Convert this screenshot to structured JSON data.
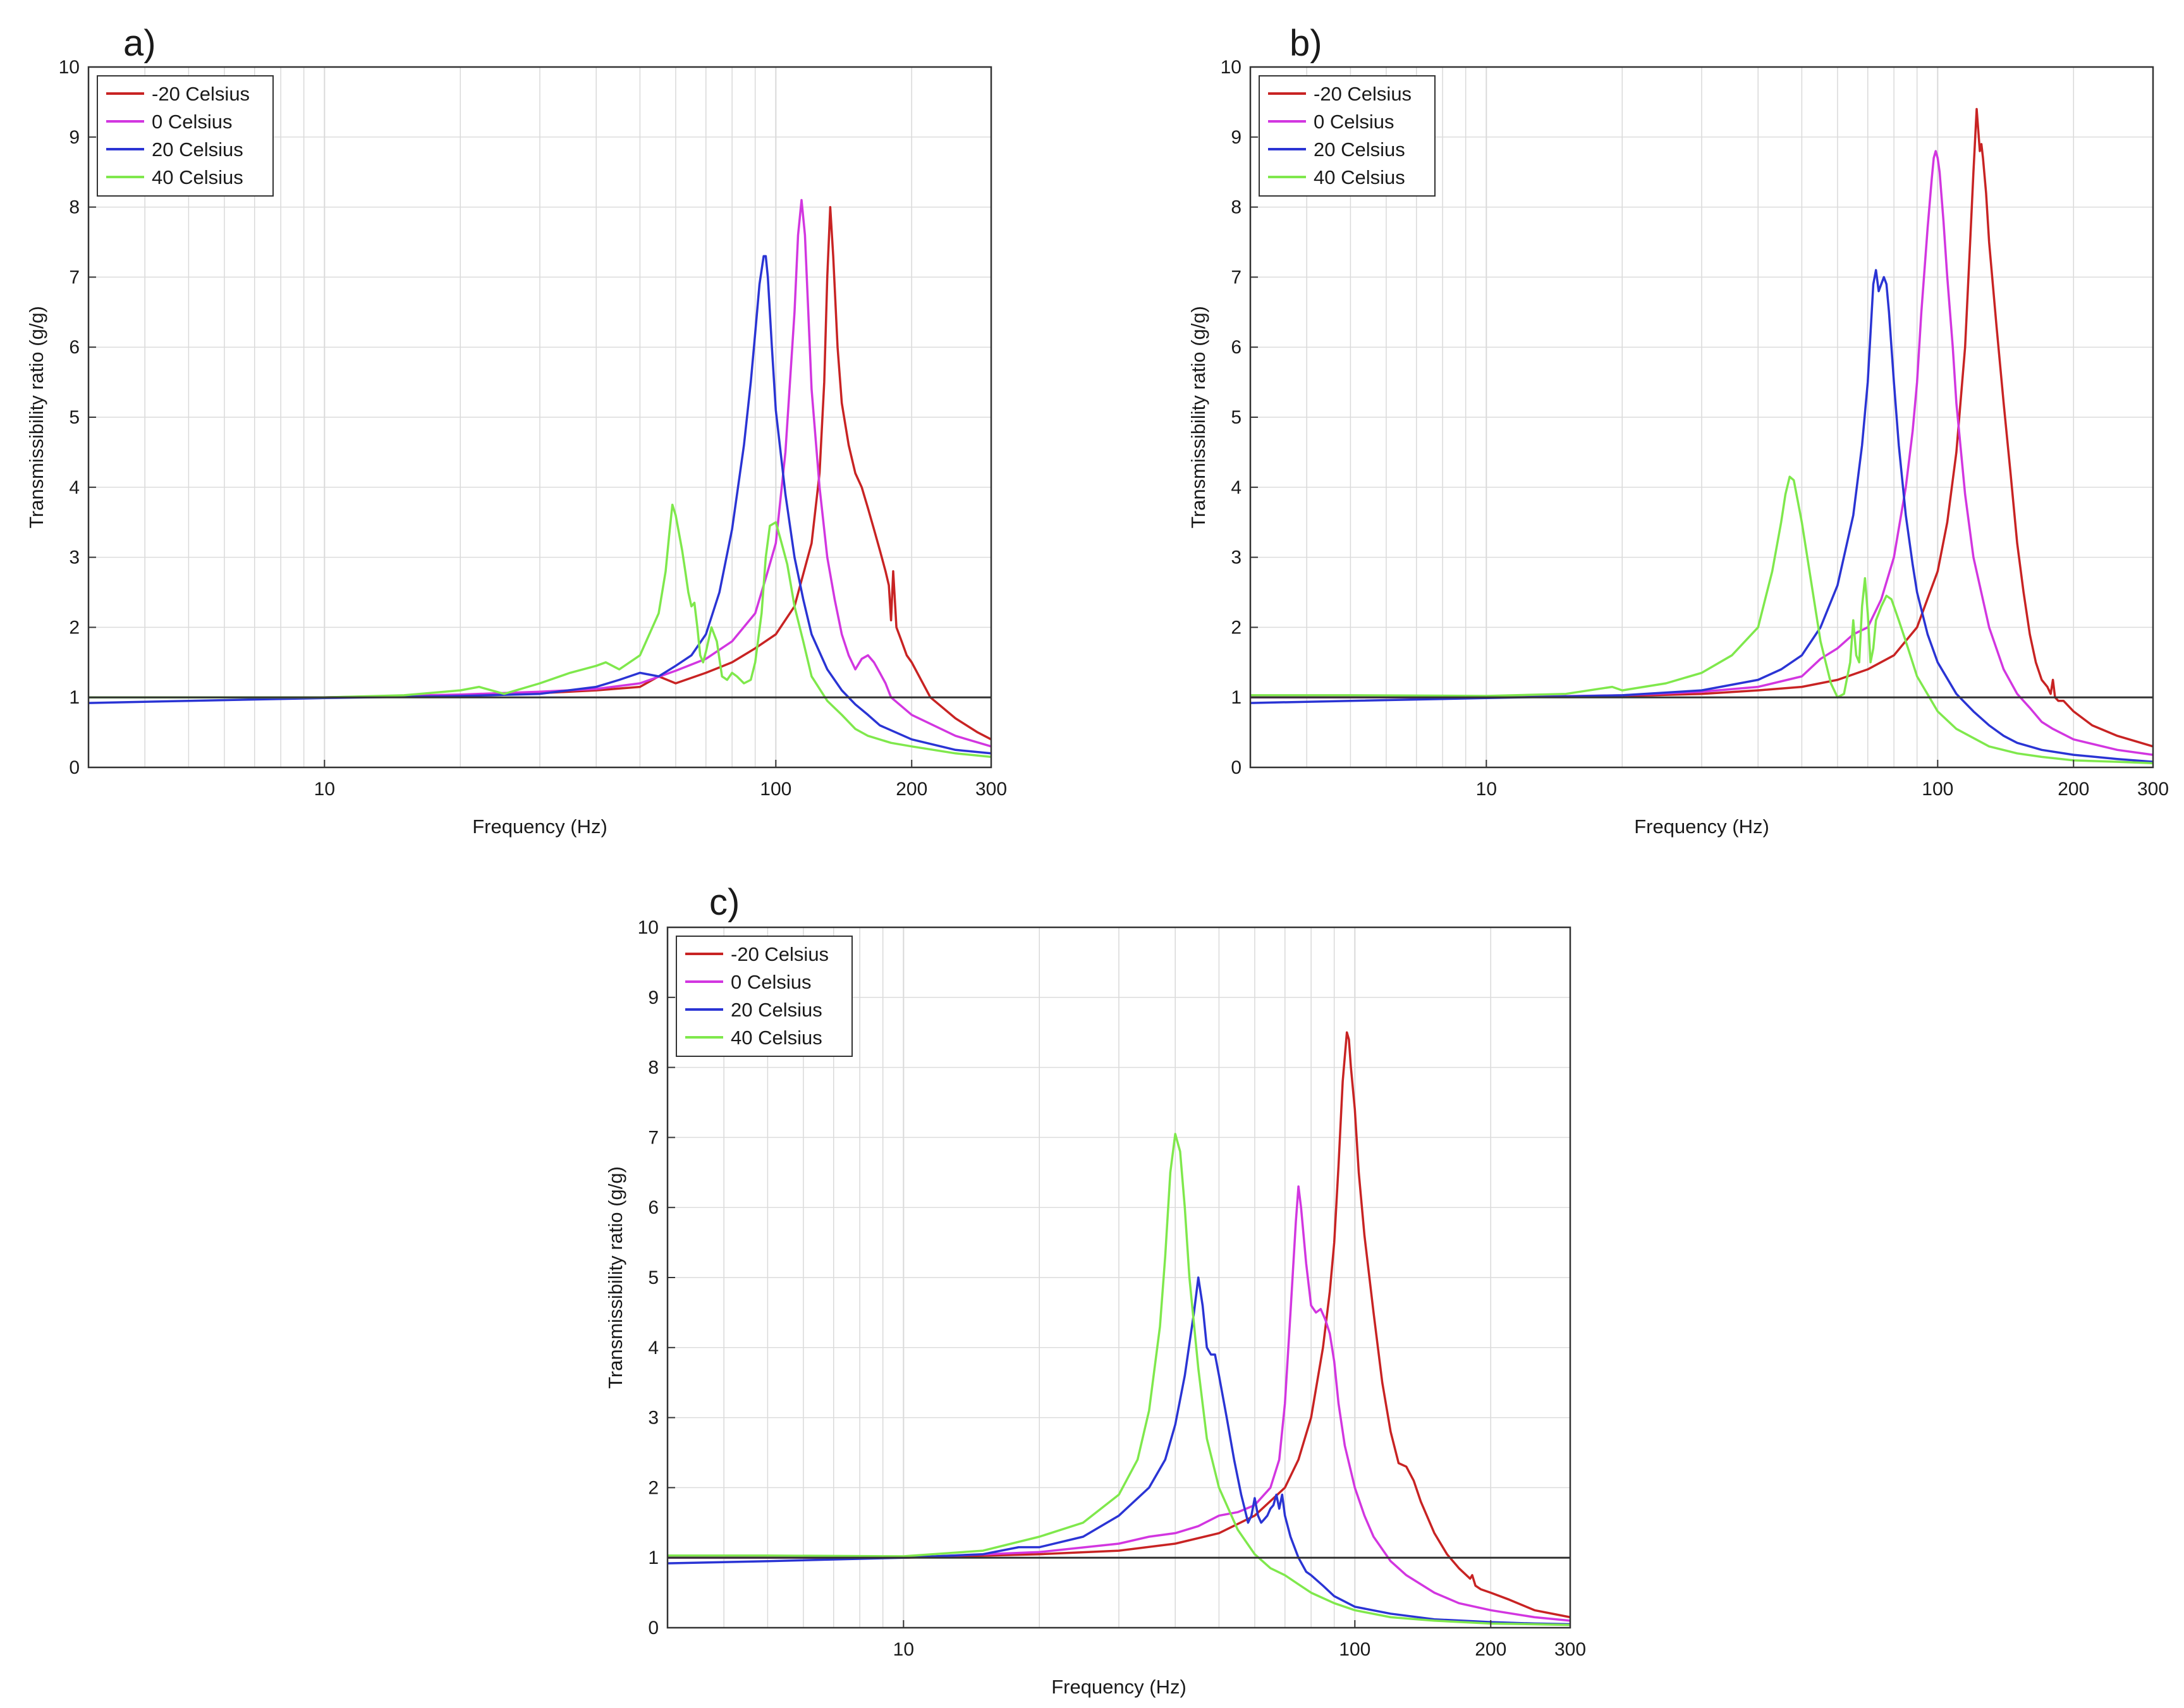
{
  "chart_data": [
    {
      "type": "line",
      "panel_label": "a)",
      "xlabel": "Frequency (Hz)",
      "ylabel": "Transmissibility ratio (g/g)",
      "xscale": "log",
      "xlim": [
        3,
        300
      ],
      "ylim": [
        0,
        10
      ],
      "xtick_labels": [
        "10",
        "100",
        "200",
        "300"
      ],
      "ytick_labels": [
        "0",
        "1",
        "2",
        "3",
        "4",
        "5",
        "6",
        "7",
        "8",
        "9",
        "10"
      ],
      "grid": true,
      "legend_position": "top-left",
      "reference_line": 1,
      "series": [
        {
          "name": "-20 Celsius",
          "color": "#c82323",
          "x": [
            3,
            5,
            10,
            20,
            30,
            40,
            50,
            55,
            60,
            70,
            80,
            90,
            100,
            110,
            120,
            125,
            128,
            130,
            132,
            134,
            137,
            140,
            145,
            150,
            155,
            160,
            165,
            170,
            175,
            178,
            180,
            182,
            185,
            190,
            195,
            200,
            220,
            250,
            280,
            300
          ],
          "y": [
            1.0,
            1.0,
            1.0,
            1.02,
            1.06,
            1.1,
            1.15,
            1.3,
            1.2,
            1.35,
            1.5,
            1.7,
            1.9,
            2.3,
            3.2,
            4.2,
            5.5,
            7.0,
            8.0,
            7.3,
            6.0,
            5.2,
            4.6,
            4.2,
            4.0,
            3.7,
            3.4,
            3.1,
            2.8,
            2.6,
            2.1,
            2.8,
            2.0,
            1.8,
            1.6,
            1.5,
            1.0,
            0.7,
            0.5,
            0.4
          ]
        },
        {
          "name": "0 Celsius",
          "color": "#d236e0",
          "x": [
            3,
            5,
            10,
            20,
            30,
            40,
            50,
            60,
            70,
            80,
            90,
            95,
            100,
            105,
            110,
            112,
            114,
            116,
            118,
            120,
            125,
            130,
            135,
            140,
            145,
            150,
            155,
            160,
            165,
            170,
            175,
            180,
            200,
            250,
            300
          ],
          "y": [
            1.0,
            1.0,
            1.0,
            1.04,
            1.08,
            1.12,
            1.2,
            1.38,
            1.55,
            1.8,
            2.2,
            2.7,
            3.2,
            4.5,
            6.5,
            7.6,
            8.1,
            7.6,
            6.5,
            5.4,
            4.0,
            3.0,
            2.4,
            1.9,
            1.6,
            1.4,
            1.55,
            1.6,
            1.5,
            1.35,
            1.2,
            1.0,
            0.75,
            0.45,
            0.3
          ]
        },
        {
          "name": "20 Celsius",
          "color": "#2a34d4",
          "x": [
            3,
            5,
            10,
            20,
            30,
            40,
            45,
            50,
            55,
            60,
            65,
            70,
            75,
            80,
            85,
            88,
            90,
            92,
            94,
            95,
            96,
            98,
            100,
            105,
            110,
            115,
            120,
            130,
            140,
            150,
            160,
            170,
            200,
            250,
            300
          ],
          "y": [
            0.92,
            0.95,
            0.99,
            1.02,
            1.05,
            1.15,
            1.25,
            1.35,
            1.3,
            1.45,
            1.6,
            1.9,
            2.5,
            3.4,
            4.6,
            5.5,
            6.2,
            6.9,
            7.3,
            7.3,
            7.0,
            6.0,
            5.1,
            3.9,
            3.0,
            2.4,
            1.9,
            1.4,
            1.1,
            0.9,
            0.75,
            0.6,
            0.4,
            0.25,
            0.2
          ]
        },
        {
          "name": "40 Celsius",
          "color": "#7fe84c",
          "x": [
            3,
            5,
            10,
            15,
            20,
            22,
            25,
            30,
            35,
            40,
            42,
            45,
            50,
            55,
            57,
            58,
            59,
            60,
            62,
            63,
            64,
            65,
            66,
            67,
            68,
            69,
            70,
            72,
            74,
            76,
            78,
            80,
            82,
            85,
            88,
            90,
            93,
            95,
            97,
            100,
            102,
            104,
            106,
            108,
            110,
            115,
            120,
            130,
            140,
            150,
            160,
            180,
            200,
            250,
            300
          ],
          "y": [
            1.0,
            1.0,
            1.0,
            1.03,
            1.1,
            1.15,
            1.05,
            1.2,
            1.35,
            1.45,
            1.5,
            1.4,
            1.6,
            2.2,
            2.8,
            3.3,
            3.75,
            3.6,
            3.1,
            2.8,
            2.5,
            2.3,
            2.35,
            2.0,
            1.6,
            1.5,
            1.65,
            2.0,
            1.8,
            1.3,
            1.25,
            1.35,
            1.3,
            1.2,
            1.25,
            1.5,
            2.2,
            3.0,
            3.45,
            3.5,
            3.3,
            3.1,
            2.9,
            2.6,
            2.3,
            1.8,
            1.3,
            0.95,
            0.75,
            0.55,
            0.45,
            0.35,
            0.3,
            0.2,
            0.15
          ]
        }
      ]
    },
    {
      "type": "line",
      "panel_label": "b)",
      "xlabel": "Frequency (Hz)",
      "ylabel": "Transmissibility ratio (g/g)",
      "xscale": "log",
      "xlim": [
        3,
        300
      ],
      "ylim": [
        0,
        10
      ],
      "xtick_labels": [
        "10",
        "100",
        "200",
        "300"
      ],
      "ytick_labels": [
        "0",
        "1",
        "2",
        "3",
        "4",
        "5",
        "6",
        "7",
        "8",
        "9",
        "10"
      ],
      "grid": true,
      "legend_position": "top-left",
      "reference_line": 1,
      "series": [
        {
          "name": "-20 Celsius",
          "color": "#c82323",
          "x": [
            3,
            5,
            10,
            20,
            30,
            40,
            50,
            60,
            70,
            80,
            90,
            100,
            105,
            110,
            115,
            118,
            120,
            122,
            124,
            125,
            126,
            128,
            130,
            135,
            140,
            145,
            150,
            155,
            160,
            165,
            170,
            175,
            178,
            180,
            182,
            185,
            190,
            200,
            220,
            250,
            300
          ],
          "y": [
            1.0,
            1.0,
            1.0,
            1.02,
            1.05,
            1.1,
            1.15,
            1.25,
            1.4,
            1.6,
            2.0,
            2.8,
            3.5,
            4.5,
            6.0,
            7.5,
            8.5,
            9.4,
            8.8,
            8.9,
            8.7,
            8.2,
            7.5,
            6.3,
            5.2,
            4.2,
            3.2,
            2.5,
            1.9,
            1.5,
            1.25,
            1.15,
            1.05,
            1.25,
            1.0,
            0.95,
            0.95,
            0.8,
            0.6,
            0.45,
            0.3
          ]
        },
        {
          "name": "0 Celsius",
          "color": "#d236e0",
          "x": [
            3,
            5,
            10,
            20,
            30,
            40,
            50,
            55,
            60,
            65,
            70,
            75,
            80,
            85,
            88,
            90,
            92,
            95,
            97,
            98,
            99,
            100,
            101,
            103,
            105,
            108,
            110,
            115,
            120,
            130,
            140,
            150,
            160,
            170,
            180,
            200,
            250,
            300
          ],
          "y": [
            1.0,
            1.0,
            1.0,
            1.03,
            1.08,
            1.15,
            1.3,
            1.55,
            1.7,
            1.9,
            2.0,
            2.4,
            3.0,
            4.0,
            4.8,
            5.5,
            6.5,
            7.7,
            8.4,
            8.7,
            8.8,
            8.7,
            8.5,
            7.8,
            7.0,
            6.0,
            5.2,
            3.9,
            3.0,
            2.0,
            1.4,
            1.05,
            0.85,
            0.65,
            0.55,
            0.4,
            0.25,
            0.18
          ]
        },
        {
          "name": "20 Celsius",
          "color": "#2a34d4",
          "x": [
            3,
            5,
            10,
            20,
            30,
            40,
            45,
            50,
            55,
            60,
            65,
            68,
            70,
            71,
            72,
            73,
            74,
            75,
            76,
            77,
            78,
            80,
            82,
            85,
            88,
            90,
            95,
            100,
            110,
            120,
            130,
            140,
            150,
            170,
            200,
            250,
            300
          ],
          "y": [
            0.92,
            0.95,
            0.99,
            1.03,
            1.1,
            1.25,
            1.4,
            1.6,
            2.0,
            2.6,
            3.6,
            4.6,
            5.5,
            6.2,
            6.9,
            7.1,
            6.8,
            6.9,
            7.0,
            6.9,
            6.5,
            5.5,
            4.6,
            3.6,
            2.9,
            2.5,
            1.9,
            1.5,
            1.05,
            0.8,
            0.6,
            0.45,
            0.35,
            0.25,
            0.18,
            0.12,
            0.08
          ]
        },
        {
          "name": "40 Celsius",
          "color": "#7fe84c",
          "x": [
            3,
            5,
            10,
            15,
            19,
            20,
            25,
            30,
            35,
            40,
            43,
            45,
            46,
            47,
            48,
            49,
            50,
            52,
            55,
            58,
            60,
            62,
            64,
            65,
            66,
            67,
            68,
            69,
            70,
            71,
            72,
            73,
            74,
            75,
            77,
            79,
            80,
            82,
            85,
            90,
            100,
            110,
            130,
            150,
            170,
            200,
            250,
            300
          ],
          "y": [
            1.03,
            1.03,
            1.02,
            1.05,
            1.15,
            1.1,
            1.2,
            1.35,
            1.6,
            2.0,
            2.8,
            3.5,
            3.9,
            4.15,
            4.1,
            3.8,
            3.5,
            2.8,
            1.8,
            1.2,
            1.0,
            1.05,
            1.5,
            2.1,
            1.6,
            1.5,
            2.3,
            2.7,
            2.2,
            1.5,
            1.7,
            2.1,
            2.2,
            2.3,
            2.45,
            2.4,
            2.3,
            2.1,
            1.8,
            1.3,
            0.8,
            0.55,
            0.3,
            0.2,
            0.15,
            0.1,
            0.08,
            0.06
          ]
        }
      ]
    },
    {
      "type": "line",
      "panel_label": "c)",
      "xlabel": "Frequency (Hz)",
      "ylabel": "Transmissibility ratio (g/g)",
      "xscale": "log",
      "xlim": [
        3,
        300
      ],
      "ylim": [
        0,
        10
      ],
      "xtick_labels": [
        "10",
        "100",
        "200",
        "300"
      ],
      "ytick_labels": [
        "0",
        "1",
        "2",
        "3",
        "4",
        "5",
        "6",
        "7",
        "8",
        "9",
        "10"
      ],
      "grid": true,
      "legend_position": "top-left",
      "reference_line": 1,
      "series": [
        {
          "name": "-20 Celsius",
          "color": "#c82323",
          "x": [
            3,
            5,
            10,
            20,
            30,
            40,
            50,
            60,
            70,
            75,
            80,
            85,
            88,
            90,
            92,
            94,
            96,
            97,
            98,
            100,
            102,
            105,
            110,
            115,
            120,
            125,
            130,
            135,
            140,
            150,
            160,
            170,
            180,
            182,
            185,
            190,
            200,
            220,
            250,
            300
          ],
          "y": [
            1.0,
            1.0,
            1.0,
            1.05,
            1.1,
            1.2,
            1.35,
            1.6,
            2.0,
            2.4,
            3.0,
            4.0,
            4.8,
            5.5,
            6.6,
            7.8,
            8.5,
            8.4,
            8.0,
            7.4,
            6.5,
            5.6,
            4.5,
            3.5,
            2.8,
            2.35,
            2.3,
            2.1,
            1.8,
            1.35,
            1.05,
            0.85,
            0.7,
            0.75,
            0.6,
            0.55,
            0.5,
            0.4,
            0.25,
            0.15
          ]
        },
        {
          "name": "0 Celsius",
          "color": "#d236e0",
          "x": [
            3,
            5,
            10,
            20,
            30,
            35,
            40,
            45,
            50,
            55,
            60,
            65,
            68,
            70,
            72,
            74,
            75,
            76,
            78,
            80,
            82,
            84,
            86,
            88,
            90,
            92,
            95,
            100,
            105,
            110,
            120,
            130,
            150,
            170,
            200,
            250,
            300
          ],
          "y": [
            1.0,
            1.0,
            1.0,
            1.08,
            1.2,
            1.3,
            1.35,
            1.45,
            1.6,
            1.65,
            1.75,
            2.0,
            2.4,
            3.2,
            4.5,
            5.8,
            6.3,
            6.0,
            5.2,
            4.6,
            4.5,
            4.55,
            4.4,
            4.2,
            3.8,
            3.2,
            2.6,
            2.0,
            1.6,
            1.3,
            0.95,
            0.75,
            0.5,
            0.35,
            0.25,
            0.15,
            0.1
          ]
        },
        {
          "name": "20 Celsius",
          "color": "#2a34d4",
          "x": [
            3,
            5,
            10,
            15,
            18,
            20,
            25,
            30,
            35,
            38,
            40,
            42,
            44,
            45,
            46,
            47,
            48,
            49,
            50,
            52,
            54,
            56,
            57,
            58,
            59,
            60,
            61,
            62,
            63,
            64,
            65,
            66,
            67,
            68,
            69,
            70,
            72,
            75,
            78,
            80,
            85,
            90,
            100,
            120,
            150,
            200,
            250,
            300
          ],
          "y": [
            0.92,
            0.95,
            1.0,
            1.05,
            1.15,
            1.15,
            1.3,
            1.6,
            2.0,
            2.4,
            2.9,
            3.6,
            4.5,
            5.0,
            4.6,
            4.0,
            3.9,
            3.9,
            3.6,
            3.0,
            2.4,
            1.9,
            1.7,
            1.5,
            1.6,
            1.85,
            1.6,
            1.5,
            1.55,
            1.6,
            1.7,
            1.75,
            1.9,
            1.7,
            1.9,
            1.6,
            1.3,
            1.0,
            0.8,
            0.75,
            0.6,
            0.45,
            0.3,
            0.2,
            0.12,
            0.08,
            0.06,
            0.05
          ]
        },
        {
          "name": "40 Celsius",
          "color": "#7fe84c",
          "x": [
            3,
            5,
            10,
            15,
            20,
            25,
            30,
            33,
            35,
            37,
            38,
            39,
            40,
            41,
            42,
            43,
            45,
            47,
            50,
            55,
            60,
            65,
            70,
            75,
            80,
            90,
            100,
            120,
            150,
            200,
            250,
            300
          ],
          "y": [
            1.03,
            1.03,
            1.02,
            1.1,
            1.3,
            1.5,
            1.9,
            2.4,
            3.1,
            4.3,
            5.3,
            6.5,
            7.05,
            6.8,
            6.0,
            5.0,
            3.7,
            2.7,
            2.0,
            1.4,
            1.05,
            0.85,
            0.75,
            0.62,
            0.5,
            0.35,
            0.25,
            0.15,
            0.1,
            0.06,
            0.05,
            0.04
          ]
        }
      ]
    }
  ]
}
